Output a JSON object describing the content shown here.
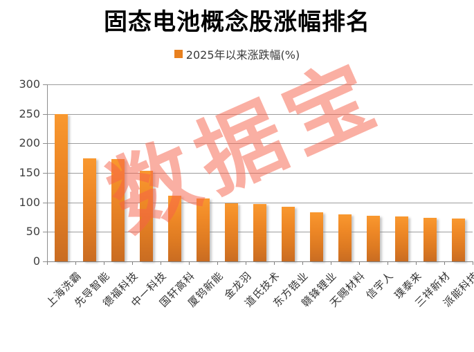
{
  "title": "固态电池概念股涨幅排名",
  "legend": {
    "label": "2025年以来涨跌幅(%)",
    "swatch_color": "#E8801F"
  },
  "watermark": {
    "text": "数据宝",
    "color": "#F76149"
  },
  "colors": {
    "bar_top": "#F9982F",
    "bar_bottom": "#C96C22",
    "gridline": "#9c9c9c",
    "axis": "#7f7f7f",
    "tick_label": "#404040",
    "category_label": "#333333"
  },
  "chart_data": {
    "type": "bar",
    "title": "固态电池概念股涨幅排名",
    "legend_entries": [
      "2025年以来涨跌幅(%)"
    ],
    "legend_position": "top",
    "grid": true,
    "xlabel": "",
    "ylabel": "",
    "ylim": [
      0,
      300
    ],
    "yticks": [
      0,
      50,
      100,
      150,
      200,
      250,
      300
    ],
    "categories": [
      "上海洗霸",
      "先导智能",
      "德福科技",
      "中一科技",
      "国轩高科",
      "厦钨新能",
      "金龙羽",
      "道氏技术",
      "东方锆业",
      "赣锋锂业",
      "天赐材料",
      "信宇人",
      "璞泰来",
      "三祥新材",
      "派能科技"
    ],
    "series": [
      {
        "name": "2025年以来涨跌幅(%)",
        "values": [
          250,
          175,
          173,
          154,
          111,
          107,
          98,
          97,
          93,
          83,
          80,
          77,
          76,
          74,
          73
        ]
      }
    ]
  }
}
